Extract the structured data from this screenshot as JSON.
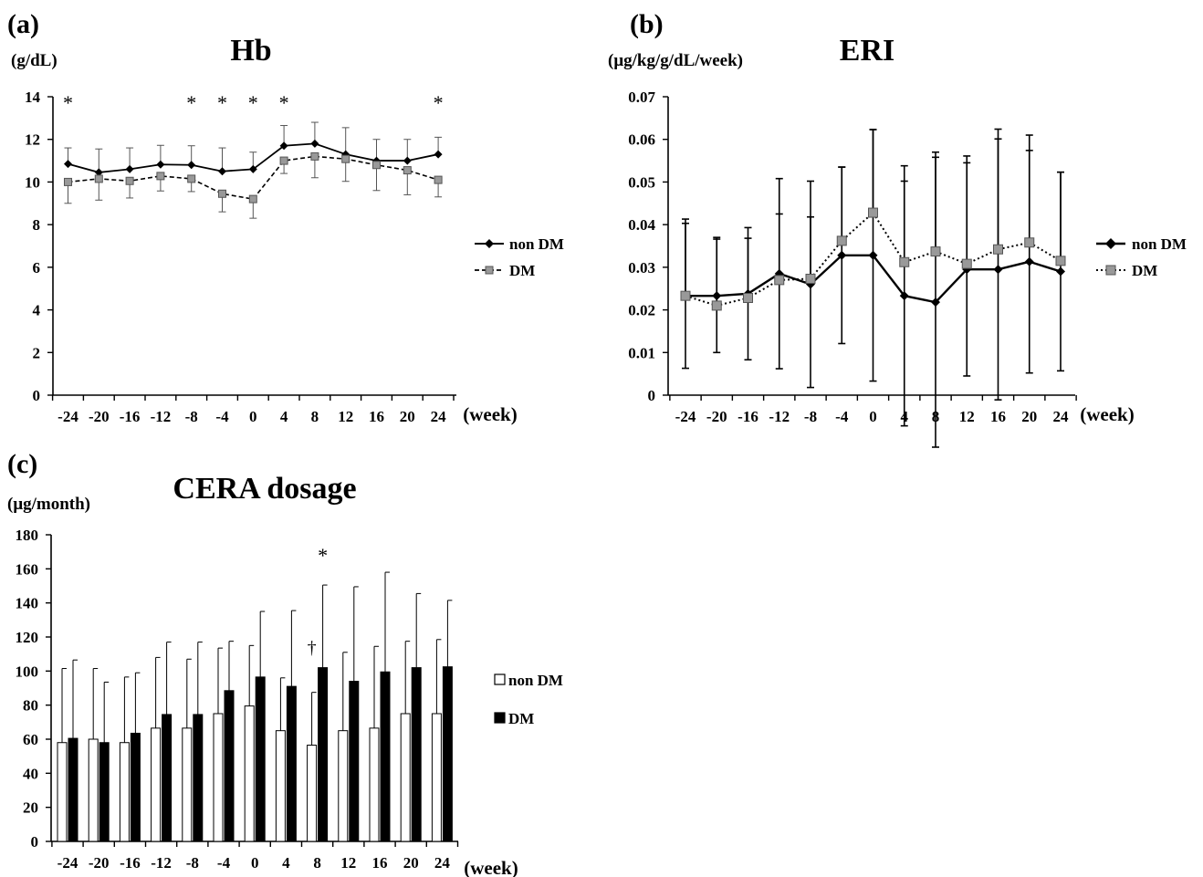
{
  "chart_data": [
    {
      "id": "a",
      "type": "line",
      "panel_label": "(a)",
      "title": "Hb",
      "ylabel": "(g/dL)",
      "xlabel": "(week)",
      "categories": [
        "-24",
        "-20",
        "-16",
        "-12",
        "-8",
        "-4",
        "0",
        "4",
        "8",
        "12",
        "16",
        "20",
        "24"
      ],
      "ylim": [
        0,
        14
      ],
      "yticks": [
        "0",
        "2",
        "4",
        "6",
        "8",
        "10",
        "12",
        "14"
      ],
      "series": [
        {
          "name": "non DM",
          "values": [
            10.85,
            10.45,
            10.6,
            10.82,
            10.8,
            10.5,
            10.6,
            11.7,
            11.8,
            11.3,
            11.0,
            11.0,
            11.3
          ],
          "errors": [
            0.75,
            1.1,
            1.0,
            0.9,
            0.9,
            1.1,
            0.8,
            0.95,
            1.0,
            1.25,
            1.0,
            1.0,
            0.8
          ]
        },
        {
          "name": "DM",
          "values": [
            10.0,
            10.15,
            10.05,
            10.28,
            10.15,
            9.45,
            9.2,
            11.0,
            11.2,
            11.08,
            10.8,
            10.55,
            10.1
          ],
          "errors": [
            1.0,
            1.0,
            0.8,
            0.7,
            0.6,
            0.85,
            0.9,
            0.6,
            1.0,
            1.05,
            1.2,
            1.15,
            0.8
          ]
        }
      ],
      "annotations": {
        "symbol": "*",
        "categories": [
          "-24",
          "-8",
          "-4",
          "0",
          "4",
          "24"
        ]
      },
      "grid": false,
      "legend_position": "right"
    },
    {
      "id": "b",
      "type": "line",
      "panel_label": "(b)",
      "title": "ERI",
      "ylabel": "(μg/kg/g/dL/week)",
      "xlabel": "(week)",
      "categories": [
        "-24",
        "-20",
        "-16",
        "-12",
        "-8",
        "-4",
        "0",
        "4",
        "8",
        "12",
        "16",
        "20",
        "24"
      ],
      "ylim": [
        0,
        0.07
      ],
      "yticks": [
        "0",
        "0.01",
        "0.02",
        "0.03",
        "0.04",
        "0.05",
        "0.06",
        "0.07"
      ],
      "series": [
        {
          "name": "non DM",
          "values": [
            0.0233,
            0.0233,
            0.0238,
            0.0285,
            0.026,
            0.0328,
            0.0328,
            0.0233,
            0.0218,
            0.0295,
            0.0295,
            0.0313,
            0.029
          ],
          "errors": [
            0.017,
            0.0133,
            0.0155,
            0.0223,
            0.0242,
            0.0207,
            0.0295,
            0.0305,
            0.034,
            0.025,
            0.0306,
            0.0261,
            0.0233
          ]
        },
        {
          "name": "DM",
          "values": [
            0.0233,
            0.021,
            0.0228,
            0.027,
            0.0273,
            0.0362,
            0.0428,
            0.0312,
            0.0337,
            0.0308,
            0.0342,
            0.0358,
            0.0315
          ],
          "errors": [
            0.018,
            0.016,
            0.014,
            0.0155,
            0.0145,
            0.0173,
            0.0195,
            0.019,
            0.0233,
            0.0253,
            0.0282,
            0.0252,
            0.0208
          ]
        }
      ],
      "grid": false,
      "legend_position": "right"
    },
    {
      "id": "c",
      "type": "bar",
      "panel_label": "(c)",
      "title": "CERA dosage",
      "ylabel": "(μg/month)",
      "xlabel": "(week)",
      "categories": [
        "-24",
        "-20",
        "-16",
        "-12",
        "-8",
        "-4",
        "0",
        "4",
        "8",
        "12",
        "16",
        "20",
        "24"
      ],
      "ylim": [
        0,
        180
      ],
      "yticks": [
        "0",
        "20",
        "40",
        "60",
        "80",
        "100",
        "120",
        "140",
        "160",
        "180"
      ],
      "series": [
        {
          "name": "non DM",
          "values": [
            58,
            60,
            58,
            66.5,
            66.5,
            75,
            79.5,
            65,
            56.5,
            65,
            66.5,
            75,
            75
          ],
          "errors": [
            43.5,
            41.5,
            38.5,
            41.5,
            40.5,
            38.5,
            35.5,
            31,
            31,
            46,
            48,
            42.5,
            43.5
          ]
        },
        {
          "name": "DM",
          "values": [
            60.5,
            58,
            63.5,
            74.5,
            74.5,
            88.5,
            96.5,
            91,
            102,
            94,
            99.5,
            102,
            102.5
          ],
          "errors": [
            46,
            35.5,
            35.5,
            42.5,
            42.5,
            29,
            38.5,
            44.5,
            48.5,
            55.5,
            58.5,
            43.5,
            39
          ]
        }
      ],
      "annotations": {
        "star_category": "8",
        "star_symbol": "*",
        "dagger_category": "8",
        "dagger_symbol": "†"
      },
      "grid": false,
      "legend_position": "right"
    }
  ]
}
